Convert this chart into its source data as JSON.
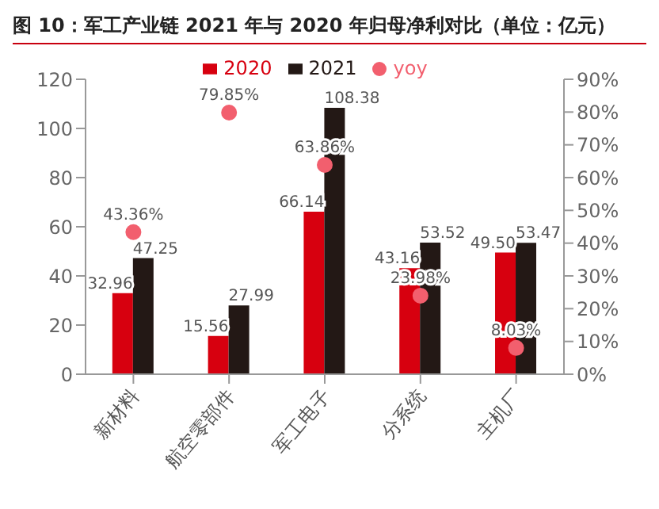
{
  "chart_data": {
    "type": "bar",
    "title": "图 10：军工产业链 2021 年与 2020 年归母净利对比（单位：亿元）",
    "categories": [
      "新材料",
      "航空零部件",
      "军工电子",
      "分系统",
      "主机厂"
    ],
    "series": [
      {
        "name": "2020",
        "color": "#d7000f",
        "values": [
          32.96,
          15.56,
          66.14,
          43.16,
          49.5
        ],
        "value_labels": [
          "32.96",
          "15.56",
          "66.14",
          "43.16",
          "49.50"
        ]
      },
      {
        "name": "2021",
        "color": "#231815",
        "values": [
          47.25,
          27.99,
          108.38,
          53.52,
          53.47
        ],
        "value_labels": [
          "47.25",
          "27.99",
          "108.38",
          "53.52",
          "53.47"
        ]
      },
      {
        "name": "yoy",
        "type": "scatter",
        "axis": "y2",
        "color": "#f25f6e",
        "values": [
          43.36,
          79.85,
          63.86,
          23.98,
          8.03
        ],
        "value_labels": [
          "43.36%",
          "79.85%",
          "63.86%",
          "23.98%",
          "8.03%"
        ]
      }
    ],
    "ylim": [
      0,
      120
    ],
    "yticks": [
      0,
      20,
      40,
      60,
      80,
      100,
      120
    ],
    "y2lim": [
      0,
      90
    ],
    "y2ticks": [
      {
        "value": 0,
        "label": "0%"
      },
      {
        "value": 10,
        "label": "10%"
      },
      {
        "value": 20,
        "label": "20%"
      },
      {
        "value": 30,
        "label": "30%"
      },
      {
        "value": 40,
        "label": "40%"
      },
      {
        "value": 50,
        "label": "50%"
      },
      {
        "value": 60,
        "label": "60%"
      },
      {
        "value": 70,
        "label": "70%"
      },
      {
        "value": 80,
        "label": "80%"
      },
      {
        "value": 90,
        "label": "90%"
      }
    ],
    "grid": false,
    "legend": "top",
    "marker": "circle"
  }
}
